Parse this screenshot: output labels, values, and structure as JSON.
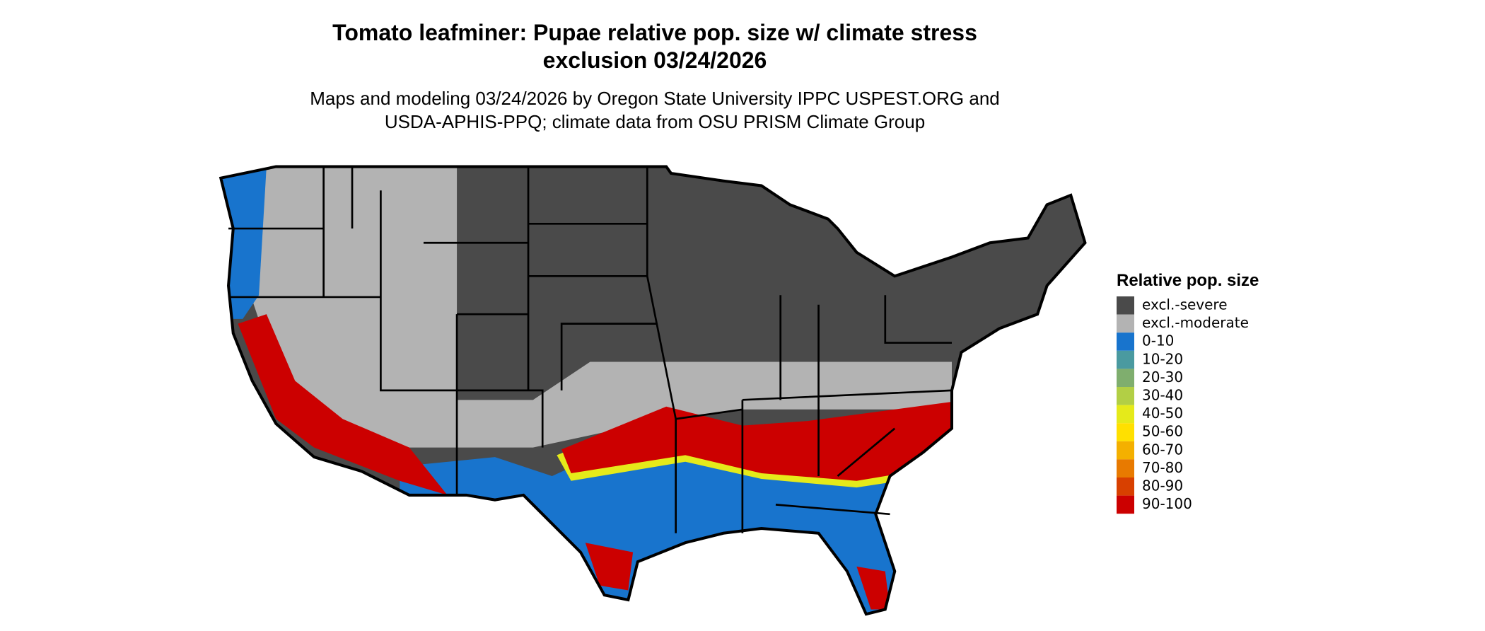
{
  "header": {
    "title_lines": [
      "Tomato leafminer: Pupae relative pop. size w/ climate stress",
      "exclusion 03/24/2026"
    ],
    "subtitle_lines": [
      "Maps and modeling 03/24/2026 by Oregon State University IPPC USPEST.ORG and",
      "USDA-APHIS-PPQ; climate data from OSU PRISM Climate Group"
    ]
  },
  "legend": {
    "title": "Relative pop. size",
    "items": [
      {
        "label": "excl.-severe",
        "color": "#4a4a4a"
      },
      {
        "label": "excl.-moderate",
        "color": "#b3b3b3"
      },
      {
        "label": "0-10",
        "color": "#1874cd"
      },
      {
        "label": "10-20",
        "color": "#4a9aa0"
      },
      {
        "label": "20-30",
        "color": "#7fae6e"
      },
      {
        "label": "30-40",
        "color": "#b2cf45"
      },
      {
        "label": "40-50",
        "color": "#e5ea1a"
      },
      {
        "label": "50-60",
        "color": "#ffe000"
      },
      {
        "label": "60-70",
        "color": "#f4b000"
      },
      {
        "label": "70-80",
        "color": "#e87a00"
      },
      {
        "label": "80-90",
        "color": "#d84000"
      },
      {
        "label": "90-100",
        "color": "#cc0000"
      }
    ]
  }
}
